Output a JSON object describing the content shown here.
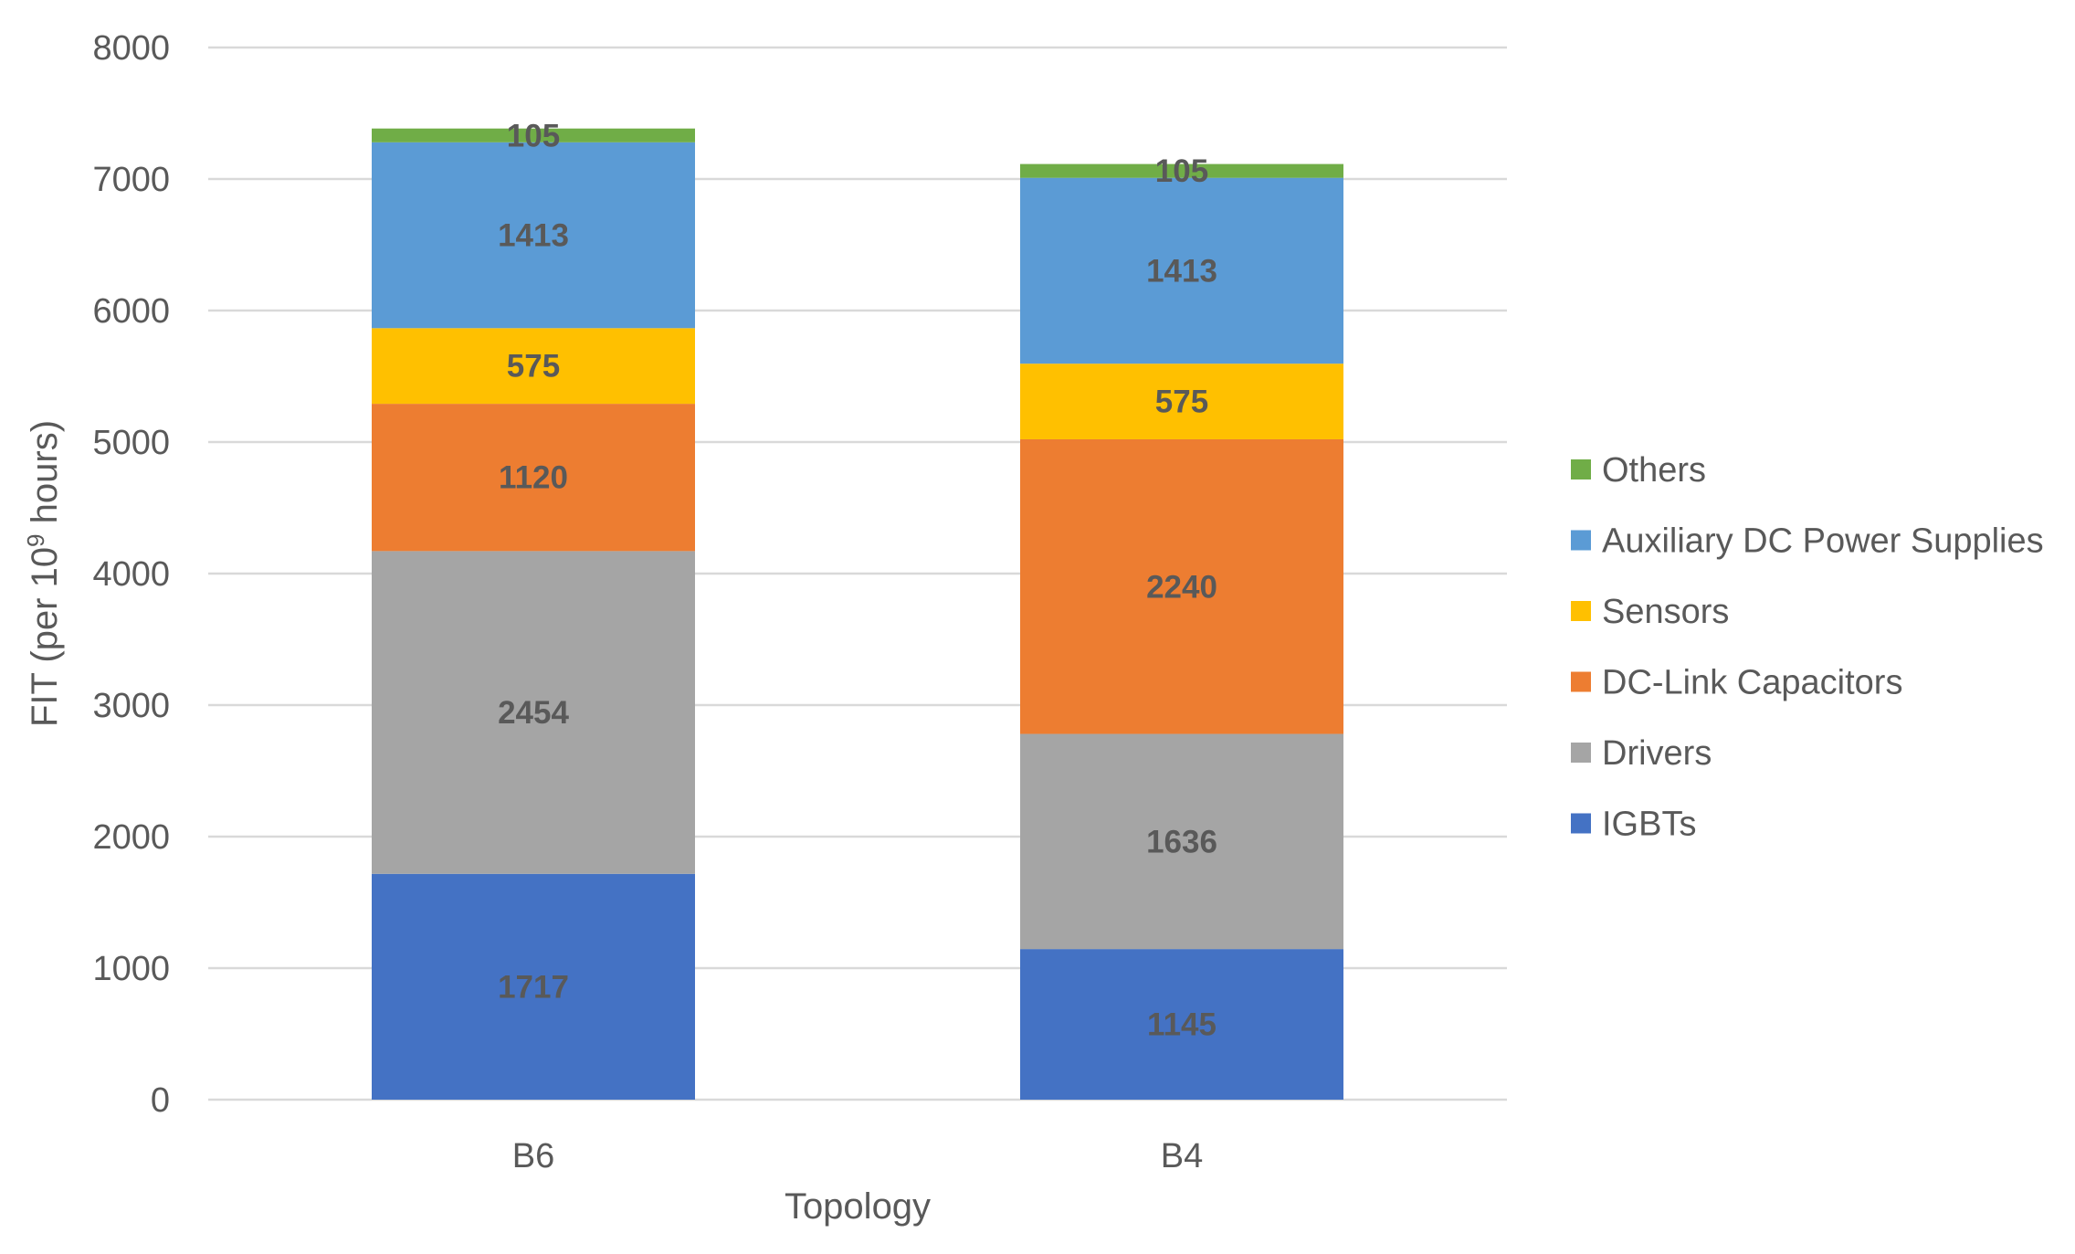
{
  "chart_data": {
    "type": "bar",
    "stacked": true,
    "categories": [
      "B6",
      "B4"
    ],
    "series": [
      {
        "name": "IGBTs",
        "color": "#4472C4",
        "values": [
          1717,
          1145
        ]
      },
      {
        "name": "Drivers",
        "color": "#A5A5A5",
        "values": [
          2454,
          1636
        ]
      },
      {
        "name": "DC-Link Capacitors",
        "color": "#ED7D31",
        "values": [
          1120,
          2240
        ]
      },
      {
        "name": "Sensors",
        "color": "#FFC000",
        "values": [
          575,
          575
        ]
      },
      {
        "name": "Auxiliary DC Power Supplies",
        "color": "#5B9BD5",
        "values": [
          1413,
          1413
        ]
      },
      {
        "name": "Others",
        "color": "#70AD47",
        "values": [
          105,
          105
        ]
      }
    ],
    "xlabel": "Topology",
    "ylabel": "FIT (per 10",
    "ylabel_superscript": "9",
    "ylabel_suffix": " hours)",
    "ylim": [
      0,
      8000
    ],
    "yticks": [
      0,
      1000,
      2000,
      3000,
      4000,
      5000,
      6000,
      7000,
      8000
    ],
    "grid": true,
    "legend_position": "right",
    "legend_order": [
      "Others",
      "Auxiliary DC Power Supplies",
      "Sensors",
      "DC-Link Capacitors",
      "Drivers",
      "IGBTs"
    ],
    "data_labels": true
  }
}
